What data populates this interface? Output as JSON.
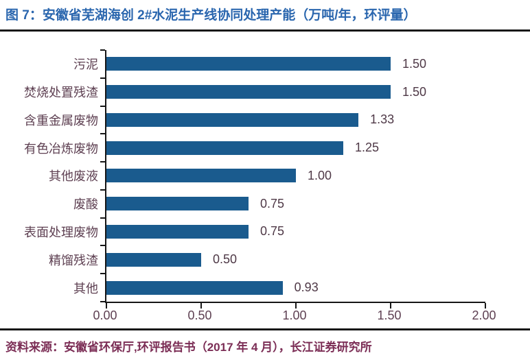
{
  "title": "图 7：安徽省芜湖海创 2#水泥生产线协同处理产能（万吨/年，环评量）",
  "footer": {
    "source_text": "资料来源：安徽省环保厅,环评报告书（2017 年 4 月），长江证券研究所"
  },
  "colors": {
    "title_blue": "#2A66AE",
    "bar_blue": "#1A5B8E",
    "chart_text_maroon": "#5E4052",
    "value_text_maroon": "#4E3846",
    "footer_maroon": "#7B2D55",
    "rule_black": "#161616"
  },
  "chart_data": {
    "type": "bar",
    "orientation": "horizontal",
    "title": "安徽省芜湖海创 2#水泥生产线协同处理产能（万吨/年，环评量）",
    "categories": [
      "污泥",
      "焚烧处置残渣",
      "含重金属废物",
      "有色冶炼废物",
      "其他废液",
      "废酸",
      "表面处理废物",
      "精馏残渣",
      "其他"
    ],
    "values": [
      1.5,
      1.5,
      1.33,
      1.25,
      1.0,
      0.75,
      0.75,
      0.5,
      0.93
    ],
    "value_labels": [
      "1.50",
      "1.50",
      "1.33",
      "1.25",
      "1.00",
      "0.75",
      "0.75",
      "0.50",
      "0.93"
    ],
    "x_ticks": [
      "0.00",
      "0.50",
      "1.00",
      "1.50",
      "2.00"
    ],
    "x_tick_values": [
      0,
      0.5,
      1.0,
      1.5,
      2.0
    ],
    "xlim": [
      0,
      2.0
    ],
    "xlabel": "",
    "ylabel": "",
    "grid": false,
    "legend": false,
    "data_labels": true
  }
}
